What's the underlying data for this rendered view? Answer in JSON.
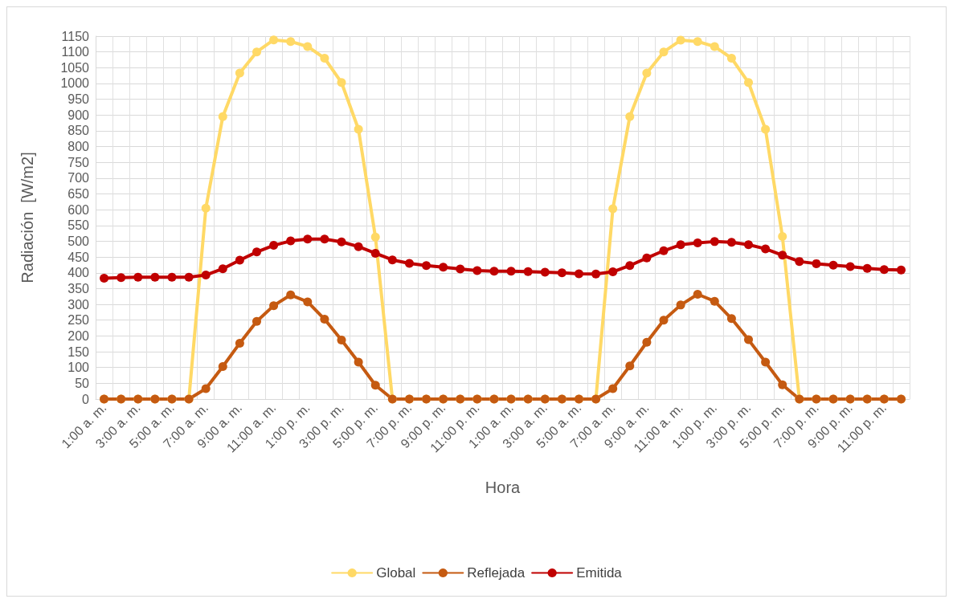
{
  "chart_data": {
    "type": "line",
    "xlabel": "Hora",
    "ylabel": "Radiación  [W/m2]",
    "categories": [
      "1:00 a. m.",
      null,
      "3:00 a. m.",
      null,
      "5:00 a. m.",
      null,
      "7:00 a. m.",
      null,
      "9:00 a. m.",
      null,
      "11:00 a. m.",
      null,
      "1:00 p. m.",
      null,
      "3:00 p. m.",
      null,
      "5:00 p. m.",
      null,
      "7:00 p. m.",
      null,
      "9:00 p. m.",
      null,
      "11:00 p. m.",
      null,
      "1:00 a. m.",
      null,
      "3:00 a. m.",
      null,
      "5:00 a. m.",
      null,
      "7:00 a. m.",
      null,
      "9:00 a. m.",
      null,
      "11:00 a. m.",
      null,
      "1:00 p. m.",
      null,
      "3:00 p. m.",
      null,
      "5:00 p. m.",
      null,
      "7:00 p. m.",
      null,
      "9:00 p. m.",
      null,
      "11:00 p. m.",
      null
    ],
    "series": [
      {
        "name": "Global",
        "color": "#ffd966",
        "values": [
          0,
          0,
          0,
          0,
          0,
          0,
          605,
          895,
          1033,
          1100,
          1138,
          1133,
          1117,
          1080,
          1003,
          855,
          513,
          0,
          0,
          0,
          0,
          0,
          0,
          0,
          0,
          0,
          0,
          0,
          0,
          0,
          603,
          895,
          1033,
          1100,
          1137,
          1133,
          1117,
          1080,
          1003,
          855,
          515,
          0,
          0,
          0,
          0,
          0,
          0,
          0
        ]
      },
      {
        "name": "Reflejada",
        "color": "#c55a11",
        "values": [
          0,
          0,
          0,
          0,
          0,
          0,
          33,
          103,
          177,
          246,
          296,
          330,
          308,
          253,
          187,
          117,
          44,
          0,
          0,
          0,
          0,
          0,
          0,
          0,
          0,
          0,
          0,
          0,
          0,
          0,
          33,
          105,
          180,
          250,
          298,
          332,
          310,
          255,
          188,
          117,
          45,
          0,
          0,
          0,
          0,
          0,
          0,
          0
        ]
      },
      {
        "name": "Emitida",
        "color": "#c00000",
        "values": [
          383,
          385,
          386,
          386,
          386,
          386,
          393,
          413,
          440,
          466,
          487,
          501,
          507,
          507,
          498,
          483,
          462,
          441,
          430,
          423,
          418,
          412,
          407,
          405,
          405,
          404,
          402,
          400,
          397,
          396,
          403,
          423,
          447,
          470,
          489,
          495,
          499,
          497,
          489,
          476,
          456,
          436,
          429,
          424,
          420,
          414,
          410,
          409
        ]
      }
    ],
    "ylim": [
      0,
      1150
    ],
    "yticks": [
      0,
      50,
      100,
      150,
      200,
      250,
      300,
      350,
      400,
      450,
      500,
      550,
      600,
      650,
      700,
      750,
      800,
      850,
      900,
      950,
      1000,
      1050,
      1100,
      1150
    ],
    "grid": true,
    "legend": "bottom",
    "marker": "circle",
    "line_style": "solid"
  }
}
